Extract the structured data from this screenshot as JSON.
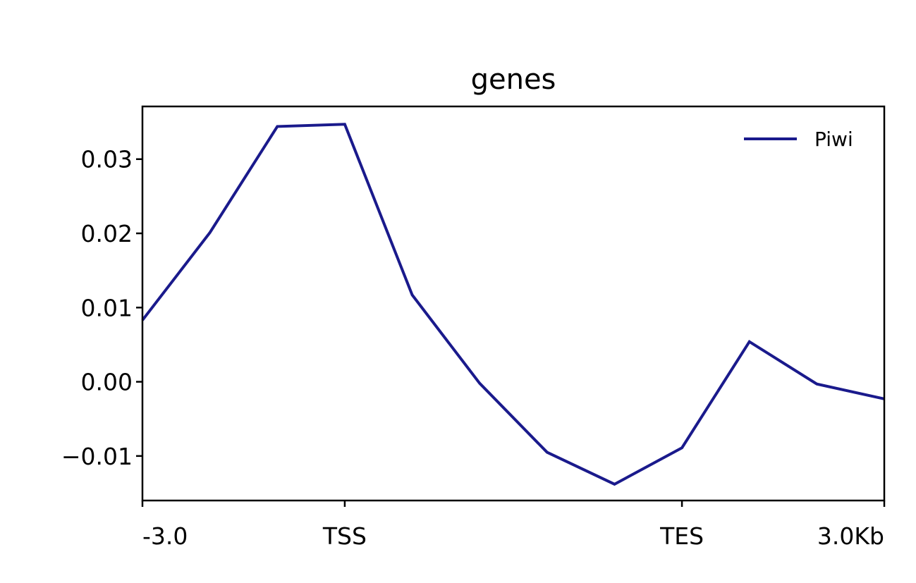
{
  "chart_data": {
    "type": "line",
    "title": "genes",
    "xlabel": "",
    "ylabel": "",
    "x": [
      0,
      1,
      2,
      3,
      4,
      5,
      6,
      7,
      8,
      9,
      10,
      11
    ],
    "x_ticks": [
      {
        "x": 0,
        "label": "-3.0"
      },
      {
        "x": 3,
        "label": "TSS"
      },
      {
        "x": 8,
        "label": "TES"
      },
      {
        "x": 11,
        "label": "3.0Kb"
      }
    ],
    "y_ticks": [
      {
        "y": 0.03,
        "label": "0.03"
      },
      {
        "y": 0.02,
        "label": "0.02"
      },
      {
        "y": 0.01,
        "label": "0.01"
      },
      {
        "y": 0.0,
        "label": "0.00"
      },
      {
        "y": -0.01,
        "label": "−0.01"
      }
    ],
    "xlim": [
      0,
      11
    ],
    "ylim": [
      -0.016,
      0.0371
    ],
    "grid": false,
    "legend_position": "top-right",
    "series": [
      {
        "name": "Piwi",
        "color": "#1a1a8c",
        "values": [
          0.0083,
          0.0201,
          0.0344,
          0.0347,
          0.0117,
          -0.0002,
          -0.0095,
          -0.0138,
          -0.0089,
          0.0054,
          -0.0003,
          -0.0023
        ]
      }
    ]
  }
}
